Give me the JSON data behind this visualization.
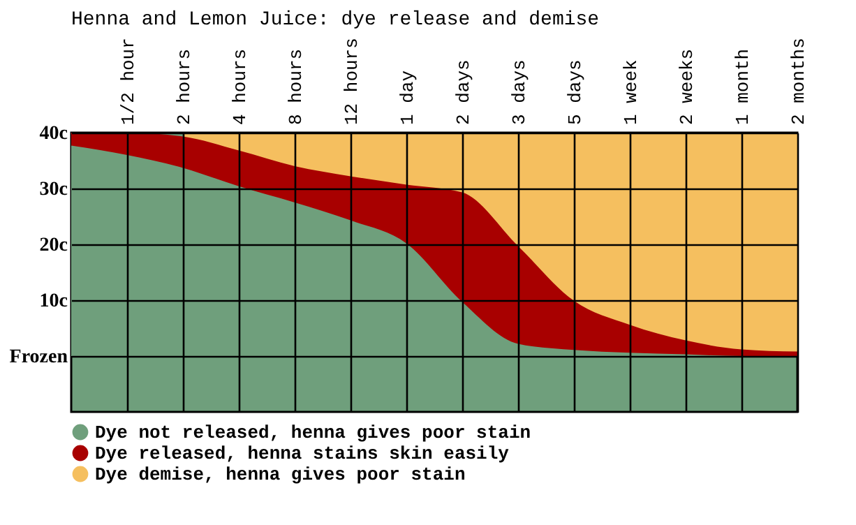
{
  "chart_data": {
    "type": "area",
    "title": "Henna and Lemon Juice: dye release and demise",
    "categories": [
      null,
      "1/2 hour",
      "2 hours",
      "4 hours",
      "8 hours",
      "12 hours",
      "1 day",
      "2 days",
      "3 days",
      "5 days",
      "1 week",
      "2 weeks",
      "1 month",
      "2 months"
    ],
    "ylim": [
      -10,
      40
    ],
    "yticks": [
      {
        "value": 40,
        "label": "40c"
      },
      {
        "value": 30,
        "label": "30c"
      },
      {
        "value": 20,
        "label": "20c"
      },
      {
        "value": 10,
        "label": "10c"
      },
      {
        "value": 0,
        "label": "Frozen"
      }
    ],
    "grid": true,
    "legend": "bottom",
    "series": [
      {
        "name": "Dye not released, henna gives poor stain",
        "color": "#6f9f7c",
        "values": [
          37.7,
          36,
          33.7,
          30.4,
          27.5,
          24.3,
          20.2,
          9.7,
          2.2,
          1.1,
          0.6,
          0.3,
          0,
          0
        ]
      },
      {
        "name": "Dye released, henna stains skin easily",
        "color": "#a80000",
        "values": [
          40,
          40,
          39.3,
          36.8,
          34,
          32.2,
          30.7,
          29.3,
          19.7,
          9.9,
          5.6,
          2.8,
          1.2,
          0.8
        ]
      },
      {
        "name": "Dye demise, henna gives poor stain",
        "color": "#f5bf5f",
        "values": [
          null,
          null,
          40,
          40,
          40,
          40,
          40,
          40,
          40,
          40,
          40,
          40,
          40,
          40
        ]
      }
    ]
  }
}
